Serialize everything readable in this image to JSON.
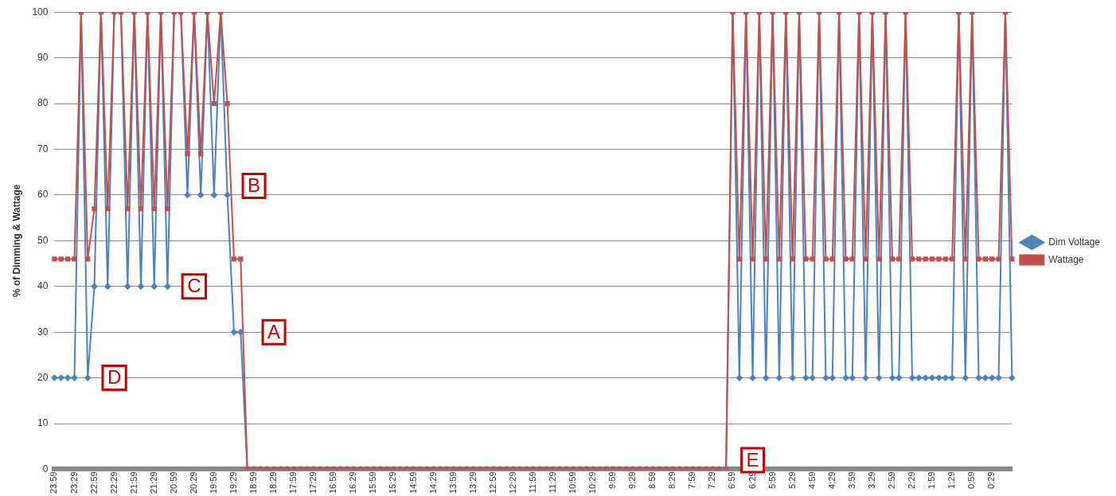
{
  "chart_data": {
    "type": "line",
    "ylabel": "% of Dimming & Wattage",
    "categories": [
      "23:59",
      null,
      null,
      "23:29",
      null,
      null,
      "22:59",
      null,
      null,
      "22:29",
      null,
      null,
      "21:59",
      null,
      null,
      "21:29",
      null,
      null,
      "20:59",
      null,
      null,
      "20:29",
      null,
      null,
      "19:59",
      null,
      null,
      "19:29",
      null,
      null,
      "18:59",
      null,
      null,
      "18:29",
      null,
      null,
      "17:59",
      null,
      null,
      "17:29",
      null,
      null,
      "16:59",
      null,
      null,
      "16:29",
      null,
      null,
      "15:59",
      null,
      null,
      "15:29",
      null,
      null,
      "14:59",
      null,
      null,
      "14:29",
      null,
      null,
      "13:59",
      null,
      null,
      "13:29",
      null,
      null,
      "12:59",
      null,
      null,
      "12:29",
      null,
      null,
      "11:59",
      null,
      null,
      "11:29",
      null,
      null,
      "10:59",
      null,
      null,
      "10:29",
      null,
      null,
      "9:59",
      null,
      null,
      "9:29",
      null,
      null,
      "8:59",
      null,
      null,
      "8:29",
      null,
      null,
      "7:59",
      null,
      null,
      "7:29",
      null,
      null,
      "6:59",
      null,
      null,
      "6:29",
      null,
      null,
      "5:59",
      null,
      null,
      "5:29",
      null,
      null,
      "4:59",
      null,
      null,
      "4:29",
      null,
      null,
      "3:59",
      null,
      null,
      "3:29",
      null,
      null,
      "2:59",
      null,
      null,
      "2:29",
      null,
      null,
      "1:59",
      null,
      null,
      "1:29",
      null,
      null,
      "0:59",
      null,
      null,
      "0:29",
      null,
      null,
      null
    ],
    "series": [
      {
        "name": "Dim Voltage",
        "color": "#4f81bd",
        "marker": "diamond",
        "values": [
          20,
          20,
          20,
          20,
          100,
          20,
          40,
          100,
          40,
          100,
          100,
          40,
          100,
          40,
          100,
          40,
          100,
          40,
          100,
          100,
          60,
          100,
          60,
          100,
          60,
          100,
          60,
          30,
          30,
          0,
          0,
          0,
          0,
          0,
          0,
          0,
          0,
          0,
          0,
          0,
          0,
          0,
          0,
          0,
          0,
          0,
          0,
          0,
          0,
          0,
          0,
          0,
          0,
          0,
          0,
          0,
          0,
          0,
          0,
          0,
          0,
          0,
          0,
          0,
          0,
          0,
          0,
          0,
          0,
          0,
          0,
          0,
          0,
          0,
          0,
          0,
          0,
          0,
          0,
          0,
          0,
          0,
          0,
          0,
          0,
          0,
          0,
          0,
          0,
          0,
          0,
          0,
          0,
          0,
          0,
          0,
          0,
          0,
          0,
          0,
          0,
          0,
          100,
          20,
          100,
          20,
          100,
          20,
          100,
          20,
          100,
          20,
          100,
          20,
          20,
          100,
          20,
          20,
          100,
          20,
          20,
          100,
          20,
          100,
          20,
          100,
          20,
          20,
          100,
          20,
          20,
          20,
          20,
          20,
          20,
          20,
          100,
          20,
          100,
          20,
          20,
          20,
          20,
          100,
          20
        ]
      },
      {
        "name": "Wattage",
        "color": "#c0504d",
        "marker": "square",
        "values": [
          46,
          46,
          46,
          46,
          100,
          46,
          57,
          100,
          57,
          100,
          100,
          57,
          100,
          57,
          100,
          57,
          100,
          57,
          100,
          100,
          69,
          100,
          69,
          100,
          80,
          100,
          80,
          46,
          46,
          0,
          0,
          0,
          0,
          0,
          0,
          0,
          0,
          0,
          0,
          0,
          0,
          0,
          0,
          0,
          0,
          0,
          0,
          0,
          0,
          0,
          0,
          0,
          0,
          0,
          0,
          0,
          0,
          0,
          0,
          0,
          0,
          0,
          0,
          0,
          0,
          0,
          0,
          0,
          0,
          0,
          0,
          0,
          0,
          0,
          0,
          0,
          0,
          0,
          0,
          0,
          0,
          0,
          0,
          0,
          0,
          0,
          0,
          0,
          0,
          0,
          0,
          0,
          0,
          0,
          0,
          0,
          0,
          0,
          0,
          0,
          0,
          0,
          100,
          46,
          100,
          46,
          100,
          46,
          100,
          46,
          100,
          46,
          100,
          46,
          46,
          100,
          46,
          46,
          100,
          46,
          46,
          100,
          46,
          100,
          46,
          100,
          46,
          46,
          100,
          46,
          46,
          46,
          46,
          46,
          46,
          46,
          100,
          46,
          100,
          46,
          46,
          46,
          46,
          100,
          46
        ]
      }
    ],
    "ylim": [
      0,
      100
    ],
    "yticks": [
      0,
      10,
      20,
      30,
      40,
      50,
      60,
      70,
      80,
      90,
      100
    ],
    "grid": "y",
    "legend": "right",
    "annotations": [
      {
        "text": "A",
        "x": "18:29",
        "y": 30
      },
      {
        "text": "B",
        "x": "18:59",
        "y": 62
      },
      {
        "text": "C",
        "x": "20:29",
        "y": 40
      },
      {
        "text": "D",
        "x": "22:29",
        "y": 20
      },
      {
        "text": "E",
        "x": "6:29",
        "y": 2
      }
    ]
  }
}
